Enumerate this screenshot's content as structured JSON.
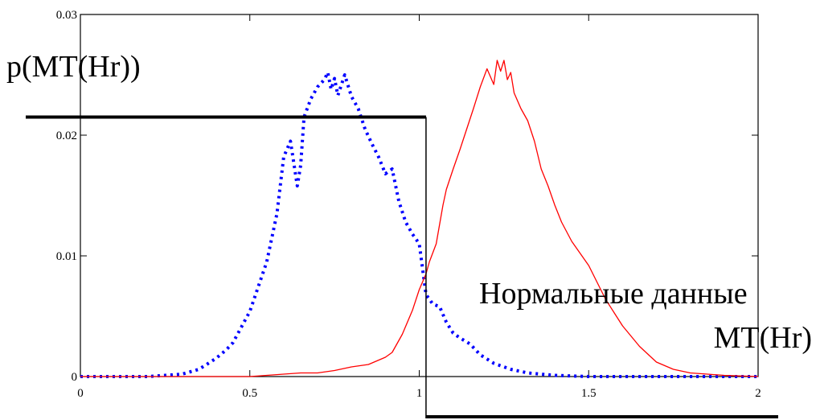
{
  "chart_data": {
    "type": "line",
    "title": "",
    "ylabel": "p(MT(Hr))",
    "xlabel": "MT(Hr)",
    "annotation": "Нормальные данные",
    "xlim": [
      0,
      2
    ],
    "ylim": [
      0,
      0.03
    ],
    "x_ticks": [
      "0",
      "0.5",
      "1",
      "1.5",
      "2"
    ],
    "y_ticks": [
      "0",
      "0.01",
      "0.02",
      "0.03"
    ],
    "threshold": {
      "x": 1.02,
      "y": 0.0215,
      "color": "#000000"
    },
    "series": [
      {
        "color": "#0000ff",
        "style": "dotted",
        "x": [
          0,
          0.1,
          0.2,
          0.3,
          0.35,
          0.4,
          0.43,
          0.45,
          0.5,
          0.55,
          0.58,
          0.6,
          0.62,
          0.64,
          0.65,
          0.66,
          0.68,
          0.7,
          0.72,
          0.73,
          0.74,
          0.75,
          0.76,
          0.78,
          0.8,
          0.82,
          0.84,
          0.86,
          0.88,
          0.9,
          0.92,
          0.94,
          0.96,
          0.98,
          1.0,
          1.02,
          1.04,
          1.06,
          1.08,
          1.1,
          1.12,
          1.15,
          1.18,
          1.22,
          1.27,
          1.32,
          1.4,
          1.5,
          1.6,
          1.7,
          2.0
        ],
        "y": [
          0,
          0,
          0,
          0.0002,
          0.0006,
          0.0015,
          0.0022,
          0.0028,
          0.0054,
          0.0095,
          0.0135,
          0.0182,
          0.0195,
          0.0158,
          0.0175,
          0.0215,
          0.023,
          0.024,
          0.0246,
          0.0252,
          0.0238,
          0.0247,
          0.0233,
          0.025,
          0.0232,
          0.0222,
          0.0205,
          0.0193,
          0.0182,
          0.0168,
          0.0172,
          0.0145,
          0.0128,
          0.0118,
          0.011,
          0.0068,
          0.006,
          0.0058,
          0.0045,
          0.0036,
          0.0032,
          0.0027,
          0.0018,
          0.0011,
          0.0006,
          0.0003,
          0.0001,
          0,
          0,
          0,
          0
        ]
      },
      {
        "color": "#ff0000",
        "style": "solid",
        "x": [
          0,
          0.5,
          0.6,
          0.65,
          0.7,
          0.75,
          0.8,
          0.85,
          0.9,
          0.92,
          0.95,
          0.98,
          1.0,
          1.02,
          1.03,
          1.05,
          1.07,
          1.08,
          1.1,
          1.12,
          1.14,
          1.16,
          1.18,
          1.2,
          1.22,
          1.23,
          1.24,
          1.25,
          1.26,
          1.27,
          1.28,
          1.3,
          1.32,
          1.34,
          1.36,
          1.38,
          1.4,
          1.42,
          1.45,
          1.5,
          1.55,
          1.6,
          1.65,
          1.7,
          1.75,
          1.8,
          1.85,
          1.9,
          2.0
        ],
        "y": [
          0,
          0,
          0.0002,
          0.0003,
          0.0003,
          0.0005,
          0.0008,
          0.001,
          0.0016,
          0.002,
          0.0035,
          0.0055,
          0.0072,
          0.0085,
          0.0095,
          0.011,
          0.0142,
          0.0155,
          0.0172,
          0.0188,
          0.0205,
          0.0222,
          0.024,
          0.0255,
          0.0242,
          0.0262,
          0.0253,
          0.0262,
          0.0246,
          0.0252,
          0.0235,
          0.0222,
          0.0212,
          0.0195,
          0.0172,
          0.0158,
          0.0142,
          0.0128,
          0.0112,
          0.0092,
          0.0064,
          0.0042,
          0.0025,
          0.0012,
          0.0006,
          0.0003,
          0.0002,
          0.0001,
          0
        ]
      }
    ]
  }
}
